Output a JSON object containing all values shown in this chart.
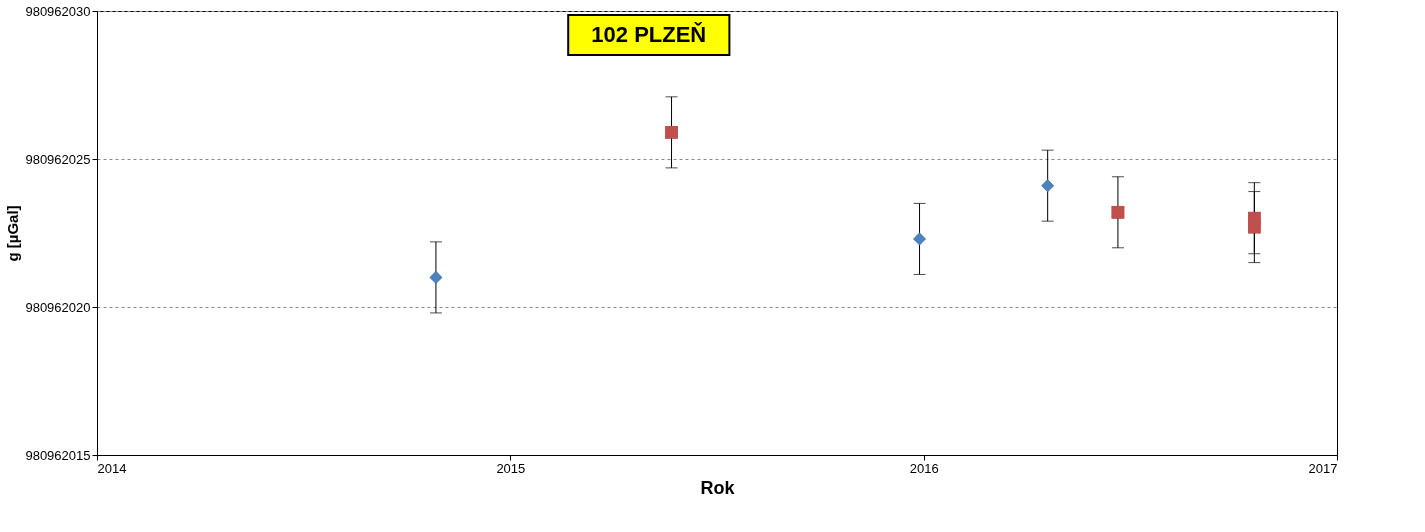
{
  "chart_data": {
    "type": "scatter",
    "title": "102 PLZEŇ",
    "xlabel": "Rok",
    "ylabel": "g [µGal]",
    "xlim": [
      2014,
      2017
    ],
    "xticks": [
      2014,
      2015,
      2016,
      2017
    ],
    "ylim": [
      980962015,
      980962030
    ],
    "yticks": [
      980962015,
      980962020,
      980962025,
      980962030
    ],
    "grid": "y",
    "series": [
      {
        "color": "#4f81bd",
        "marker": "diamond",
        "x": [
          2014.82,
          2015.99,
          2016.3
        ],
        "values": [
          980962021.0,
          980962022.3,
          980962024.1
        ],
        "errors": [
          1.2,
          1.2,
          1.2
        ]
      },
      {
        "color": "#c0504d",
        "marker": "square",
        "x": [
          2015.39,
          2016.47,
          2016.8,
          2016.8
        ],
        "values": [
          980962025.9,
          980962023.2,
          980962023.0,
          980962022.7
        ],
        "errors": [
          1.2,
          1.2,
          1.2,
          1.2
        ]
      }
    ]
  }
}
